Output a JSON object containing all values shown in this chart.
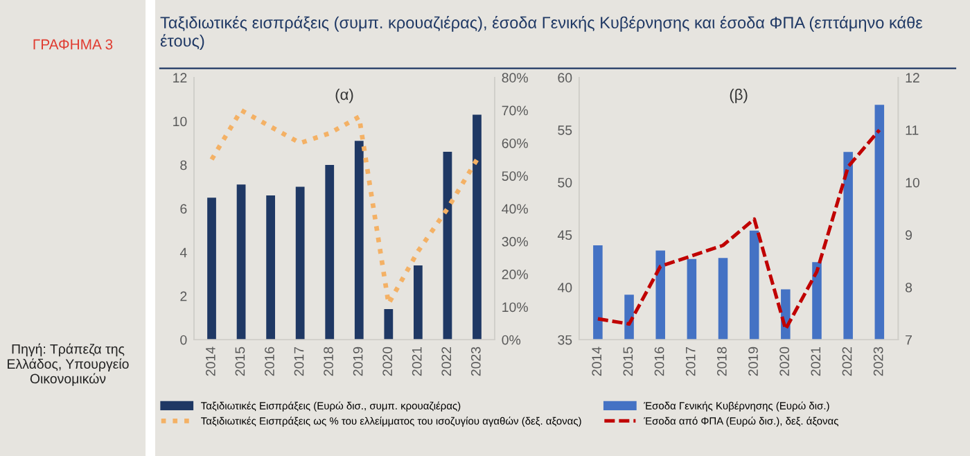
{
  "chart_data": [
    {
      "type": "bar",
      "title": "Ταξιδιωτικές εισπράξεις (συμπ. κρουαζιέρας), έσοδα Γενικής Κυβέρνησης και έσοδα ΦΠΑ (επτάμηνο κάθε έτους)",
      "subtitle": "(α)",
      "annotations": [
        "ΓΡΑΦΗΜΑ 3",
        "Πηγή: Τράπεζα της Ελλάδος, Υπουργείο Οικονομικών"
      ],
      "categories": [
        "2014",
        "2015",
        "2016",
        "2017",
        "2018",
        "2019",
        "2020",
        "2021",
        "2022",
        "2023"
      ],
      "series": [
        {
          "name": "Ταξιδιωτικές Εισπράξεις (Ευρώ δισ., συμπ. κρουαζιέρας)",
          "color": "#1f3864",
          "values": [
            6.5,
            7.1,
            6.6,
            7.0,
            8.0,
            9.1,
            1.4,
            3.4,
            8.6,
            10.3
          ]
        },
        {
          "name": "Ταξιδιωτικές Εισπράξεις ως % του ελλείμματος του ισοζυγίου αγαθών (δεξ. αξονας)",
          "type": "line",
          "axis": "y2",
          "line_style": "dotted",
          "color": "#f4b165",
          "values": [
            55,
            70,
            65,
            60,
            63,
            68,
            11,
            27,
            40,
            55
          ]
        }
      ],
      "ylim": [
        0,
        12
      ],
      "yticks": [
        0,
        2,
        4,
        6,
        8,
        10,
        12
      ],
      "y2lim": [
        0,
        80
      ],
      "y2ticks": [
        {
          "value": 0,
          "label": "0%"
        },
        {
          "value": 10,
          "label": "10%"
        },
        {
          "value": 20,
          "label": "20%"
        },
        {
          "value": 30,
          "label": "30%"
        },
        {
          "value": 40,
          "label": "40%"
        },
        {
          "value": 50,
          "label": "50%"
        },
        {
          "value": 60,
          "label": "60%"
        },
        {
          "value": 70,
          "label": "70%"
        },
        {
          "value": 80,
          "label": "80%"
        }
      ],
      "grid": false,
      "legend": "bottom"
    },
    {
      "type": "bar",
      "subtitle": "(β)",
      "categories": [
        "2014",
        "2015",
        "2016",
        "2017",
        "2018",
        "2019",
        "2020",
        "2021",
        "2022",
        "2023"
      ],
      "series": [
        {
          "name": "Έσοδα Γενικής Κυβέρνησης (Ευρώ δισ.)",
          "color": "#4472c4",
          "values": [
            44.0,
            39.3,
            43.5,
            42.7,
            42.8,
            45.4,
            39.8,
            42.4,
            52.9,
            57.4
          ]
        },
        {
          "name": "Έσοδα από ΦΠΑ (Ευρώ δισ.), δεξ. άξονας",
          "type": "line",
          "axis": "y2",
          "line_style": "dashed",
          "color": "#c00000",
          "values": [
            7.4,
            7.3,
            8.4,
            8.6,
            8.8,
            9.3,
            7.2,
            8.3,
            10.3,
            11.0
          ]
        }
      ],
      "ylim": [
        35,
        60
      ],
      "yticks": [
        35,
        40,
        45,
        50,
        55,
        60
      ],
      "y2lim": [
        7,
        12
      ],
      "y2ticks": [
        7,
        8,
        9,
        10,
        11,
        12
      ],
      "grid": false,
      "legend": "bottom"
    }
  ]
}
